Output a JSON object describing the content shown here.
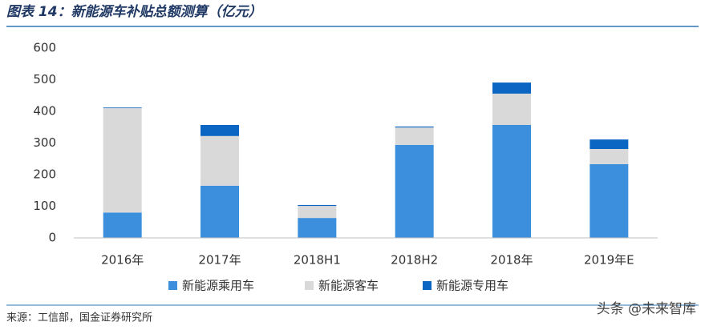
{
  "chart_data": {
    "type": "stacked_bar",
    "title": "图表 14：新能源车补贴总额测算（亿元）",
    "categories": [
      "2016年",
      "2017年",
      "2018H1",
      "2018H2",
      "2018年",
      "2019年E"
    ],
    "series": [
      {
        "name": "新能源乘用车",
        "color": "#3c8fdc",
        "values": [
          80,
          165,
          63,
          294,
          357,
          233
        ]
      },
      {
        "name": "新能源客车",
        "color": "#d9d9d9",
        "values": [
          330,
          157,
          38,
          55,
          99,
          48
        ]
      },
      {
        "name": "新能源专用车",
        "color": "#0a66c2",
        "values": [
          2,
          35,
          3,
          3,
          35,
          30
        ]
      }
    ],
    "ylim": [
      0,
      600
    ],
    "yticks": [
      0,
      100,
      200,
      300,
      400,
      500,
      600
    ],
    "grid": false,
    "legend": "bottom",
    "source": "来源：工信部，国金证券研究所",
    "watermark": "头条 @未来智库"
  }
}
